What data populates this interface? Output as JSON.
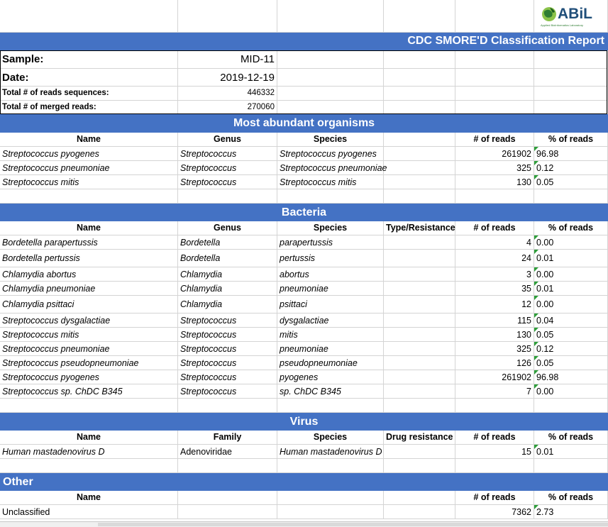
{
  "logo": {
    "text": "ABiL",
    "subtitle": "Applied BioInformatics Laboratory"
  },
  "report_title": "CDC SMORE'D Classification Report",
  "info": {
    "sample_label": "Sample:",
    "sample_value": "MID-11",
    "date_label": "Date:",
    "date_value": "2019-12-19",
    "reads_label": "Total # of reads sequences:",
    "reads_value": "446332",
    "merged_label": "Total # of merged reads:",
    "merged_value": "270060"
  },
  "sections": {
    "abundant": {
      "title": "Most abundant organisms",
      "headers": [
        "Name",
        "Genus",
        "Species",
        "",
        "# of reads",
        "% of reads"
      ],
      "rows": [
        [
          "Streptococcus pyogenes",
          "Streptococcus",
          "Streptococcus pyogenes",
          "",
          "261902",
          "96.98"
        ],
        [
          "Streptococcus pneumoniae",
          "Streptococcus",
          "Streptococcus pneumoniae",
          "",
          "325",
          "0.12"
        ],
        [
          "Streptococcus mitis",
          "Streptococcus",
          "Streptococcus mitis",
          "",
          "130",
          "0.05"
        ]
      ]
    },
    "bacteria": {
      "title": "Bacteria",
      "headers": [
        "Name",
        "Genus",
        "Species",
        "Type/Resistance",
        "# of reads",
        "% of reads"
      ],
      "rows": [
        [
          "Bordetella parapertussis",
          "Bordetella",
          "parapertussis",
          "",
          "4",
          "0.00"
        ],
        [
          "Bordetella pertussis",
          "Bordetella",
          "pertussis",
          "",
          "24",
          "0.01"
        ],
        [
          "Chlamydia abortus",
          "Chlamydia",
          "abortus",
          "",
          "3",
          "0.00"
        ],
        [
          "Chlamydia pneumoniae",
          "Chlamydia",
          "pneumoniae",
          "",
          "35",
          "0.01"
        ],
        [
          "Chlamydia psittaci",
          "Chlamydia",
          "psittaci",
          "",
          "12",
          "0.00"
        ],
        [
          "Streptococcus dysgalactiae",
          "Streptococcus",
          "dysgalactiae",
          "",
          "115",
          "0.04"
        ],
        [
          "Streptococcus mitis",
          "Streptococcus",
          "mitis",
          "",
          "130",
          "0.05"
        ],
        [
          "Streptococcus pneumoniae",
          "Streptococcus",
          "pneumoniae",
          "",
          "325",
          "0.12"
        ],
        [
          "Streptococcus pseudopneumoniae",
          "Streptococcus",
          "pseudopneumoniae",
          "",
          "126",
          "0.05"
        ],
        [
          "Streptococcus pyogenes",
          "Streptococcus",
          "pyogenes",
          "",
          "261902",
          "96.98"
        ],
        [
          "Streptococcus sp. ChDC B345",
          "Streptococcus",
          "sp. ChDC B345",
          "",
          "7",
          "0.00"
        ]
      ]
    },
    "virus": {
      "title": "Virus",
      "headers": [
        "Name",
        "Family",
        "Species",
        "Drug resistance",
        "# of reads",
        "% of reads"
      ],
      "rows": [
        [
          "Human mastadenovirus D",
          "Adenoviridae",
          "Human mastadenovirus D",
          "",
          "15",
          "0.01"
        ]
      ]
    },
    "other": {
      "title": "Other",
      "headers": [
        "Name",
        "",
        "",
        "",
        "# of reads",
        "% of reads"
      ],
      "rows": [
        [
          "Unclassified",
          "",
          "",
          "",
          "7362",
          "2.73"
        ]
      ]
    }
  },
  "colors": {
    "band": "#4472c4",
    "comment_marker": "#2e9e3a",
    "grid": "#d4d4d4"
  }
}
